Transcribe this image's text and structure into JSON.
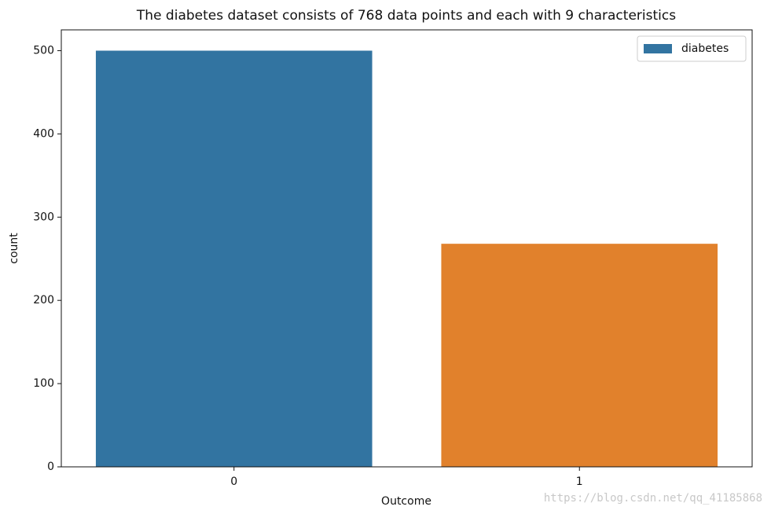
{
  "chart_data": {
    "type": "bar",
    "title": "The diabetes dataset consists of 768 data points and each with 9 characteristics",
    "x_label": "Outcome",
    "y_label": "count",
    "categories": [
      "0",
      "1"
    ],
    "series": [
      {
        "name": "diabetes",
        "colors": [
          "#3274a1",
          "#e1812c"
        ],
        "values": [
          500,
          268
        ]
      }
    ],
    "ylim": [
      0,
      525
    ],
    "yticks": [
      0,
      100,
      200,
      300,
      400,
      500
    ],
    "legend": "upper right",
    "grid": false
  },
  "watermark": "https://blog.csdn.net/qq_41185868"
}
